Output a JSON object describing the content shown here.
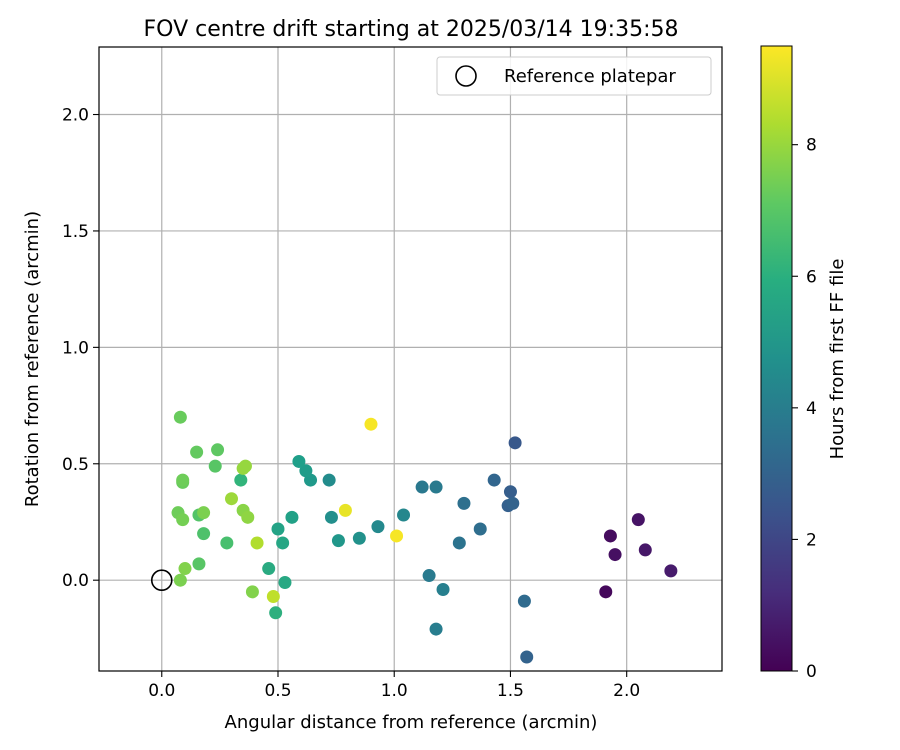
{
  "chart_data": {
    "type": "scatter",
    "title": "FOV centre drift starting at 2025/03/14 19:35:58",
    "xlabel": "Angular distance from reference (arcmin)",
    "ylabel": "Rotation from reference (arcmin)",
    "xlim": [
      -0.27,
      2.41
    ],
    "ylim": [
      -0.39,
      2.29
    ],
    "xticks": [
      0.0,
      0.5,
      1.0,
      1.5,
      2.0
    ],
    "xtick_labels": [
      "0.0",
      "0.5",
      "1.0",
      "1.5",
      "2.0"
    ],
    "yticks": [
      0.0,
      0.5,
      1.0,
      1.5,
      2.0
    ],
    "ytick_labels": [
      "0.0",
      "0.5",
      "1.0",
      "1.5",
      "2.0"
    ],
    "grid": true,
    "legend": {
      "placement": "upper right",
      "entries": [
        "Reference platepar"
      ]
    },
    "colorbar": {
      "label": "Hours from first FF file",
      "min": 0,
      "max": 9.5,
      "colormap": "viridis",
      "ticks": [
        0,
        2,
        4,
        6,
        8
      ],
      "tick_labels": [
        "0",
        "2",
        "4",
        "6",
        "8"
      ]
    },
    "reference_point": {
      "x": 0.0,
      "y": 0.0,
      "label": "Reference platepar"
    },
    "points": [
      {
        "x": 1.91,
        "y": -0.05,
        "hours": 0.2
      },
      {
        "x": 1.93,
        "y": 0.19,
        "hours": 0.3
      },
      {
        "x": 1.95,
        "y": 0.11,
        "hours": 0.4
      },
      {
        "x": 2.05,
        "y": 0.26,
        "hours": 0.5
      },
      {
        "x": 2.08,
        "y": 0.13,
        "hours": 0.6
      },
      {
        "x": 2.19,
        "y": 0.04,
        "hours": 0.7
      },
      {
        "x": 1.57,
        "y": -0.33,
        "hours": 3.0
      },
      {
        "x": 1.52,
        "y": 0.59,
        "hours": 2.6
      },
      {
        "x": 1.5,
        "y": 0.38,
        "hours": 2.8
      },
      {
        "x": 1.49,
        "y": 0.32,
        "hours": 2.9
      },
      {
        "x": 1.51,
        "y": 0.33,
        "hours": 3.0
      },
      {
        "x": 1.43,
        "y": 0.43,
        "hours": 3.1
      },
      {
        "x": 1.56,
        "y": -0.09,
        "hours": 3.3
      },
      {
        "x": 1.37,
        "y": 0.22,
        "hours": 3.4
      },
      {
        "x": 1.3,
        "y": 0.33,
        "hours": 3.5
      },
      {
        "x": 1.28,
        "y": 0.16,
        "hours": 3.6
      },
      {
        "x": 1.12,
        "y": 0.4,
        "hours": 3.8
      },
      {
        "x": 1.18,
        "y": 0.4,
        "hours": 3.9
      },
      {
        "x": 1.15,
        "y": 0.02,
        "hours": 3.9
      },
      {
        "x": 1.18,
        "y": -0.21,
        "hours": 4.0
      },
      {
        "x": 1.21,
        "y": -0.04,
        "hours": 4.1
      },
      {
        "x": 1.04,
        "y": 0.28,
        "hours": 4.4
      },
      {
        "x": 0.93,
        "y": 0.23,
        "hours": 4.5
      },
      {
        "x": 0.72,
        "y": 0.43,
        "hours": 4.6
      },
      {
        "x": 0.73,
        "y": 0.27,
        "hours": 4.7
      },
      {
        "x": 0.85,
        "y": 0.18,
        "hours": 4.8
      },
      {
        "x": 0.76,
        "y": 0.17,
        "hours": 5.0
      },
      {
        "x": 0.64,
        "y": 0.43,
        "hours": 5.1
      },
      {
        "x": 0.62,
        "y": 0.47,
        "hours": 5.2
      },
      {
        "x": 0.59,
        "y": 0.51,
        "hours": 5.3
      },
      {
        "x": 0.56,
        "y": 0.27,
        "hours": 5.4
      },
      {
        "x": 0.5,
        "y": 0.22,
        "hours": 5.5
      },
      {
        "x": 0.52,
        "y": 0.16,
        "hours": 5.6
      },
      {
        "x": 0.53,
        "y": -0.01,
        "hours": 5.7
      },
      {
        "x": 0.46,
        "y": 0.05,
        "hours": 5.8
      },
      {
        "x": 0.49,
        "y": -0.14,
        "hours": 6.0
      },
      {
        "x": 0.34,
        "y": 0.43,
        "hours": 6.2
      },
      {
        "x": 0.28,
        "y": 0.16,
        "hours": 6.7
      },
      {
        "x": 0.18,
        "y": 0.2,
        "hours": 6.8
      },
      {
        "x": 0.16,
        "y": 0.28,
        "hours": 6.9
      },
      {
        "x": 0.16,
        "y": 0.07,
        "hours": 7.0
      },
      {
        "x": 0.23,
        "y": 0.49,
        "hours": 7.0
      },
      {
        "x": 0.24,
        "y": 0.56,
        "hours": 7.1
      },
      {
        "x": 0.15,
        "y": 0.55,
        "hours": 7.2
      },
      {
        "x": 0.08,
        "y": 0.7,
        "hours": 7.3
      },
      {
        "x": 0.09,
        "y": 0.42,
        "hours": 7.3
      },
      {
        "x": 0.09,
        "y": 0.43,
        "hours": 7.4
      },
      {
        "x": 0.07,
        "y": 0.29,
        "hours": 7.4
      },
      {
        "x": 0.09,
        "y": 0.26,
        "hours": 7.5
      },
      {
        "x": 0.18,
        "y": 0.29,
        "hours": 7.6
      },
      {
        "x": 0.08,
        "y": 0.0,
        "hours": 7.6
      },
      {
        "x": 0.1,
        "y": 0.05,
        "hours": 7.7
      },
      {
        "x": 0.39,
        "y": -0.05,
        "hours": 7.7
      },
      {
        "x": 0.35,
        "y": 0.3,
        "hours": 7.8
      },
      {
        "x": 0.37,
        "y": 0.27,
        "hours": 7.9
      },
      {
        "x": 0.35,
        "y": 0.48,
        "hours": 8.0
      },
      {
        "x": 0.36,
        "y": 0.49,
        "hours": 8.0
      },
      {
        "x": 0.3,
        "y": 0.35,
        "hours": 8.1
      },
      {
        "x": 0.41,
        "y": 0.16,
        "hours": 8.4
      },
      {
        "x": 0.48,
        "y": -0.07,
        "hours": 8.6
      },
      {
        "x": 0.79,
        "y": 0.3,
        "hours": 9.2
      },
      {
        "x": 0.9,
        "y": 0.67,
        "hours": 9.4
      },
      {
        "x": 1.01,
        "y": 0.19,
        "hours": 9.4
      }
    ]
  }
}
